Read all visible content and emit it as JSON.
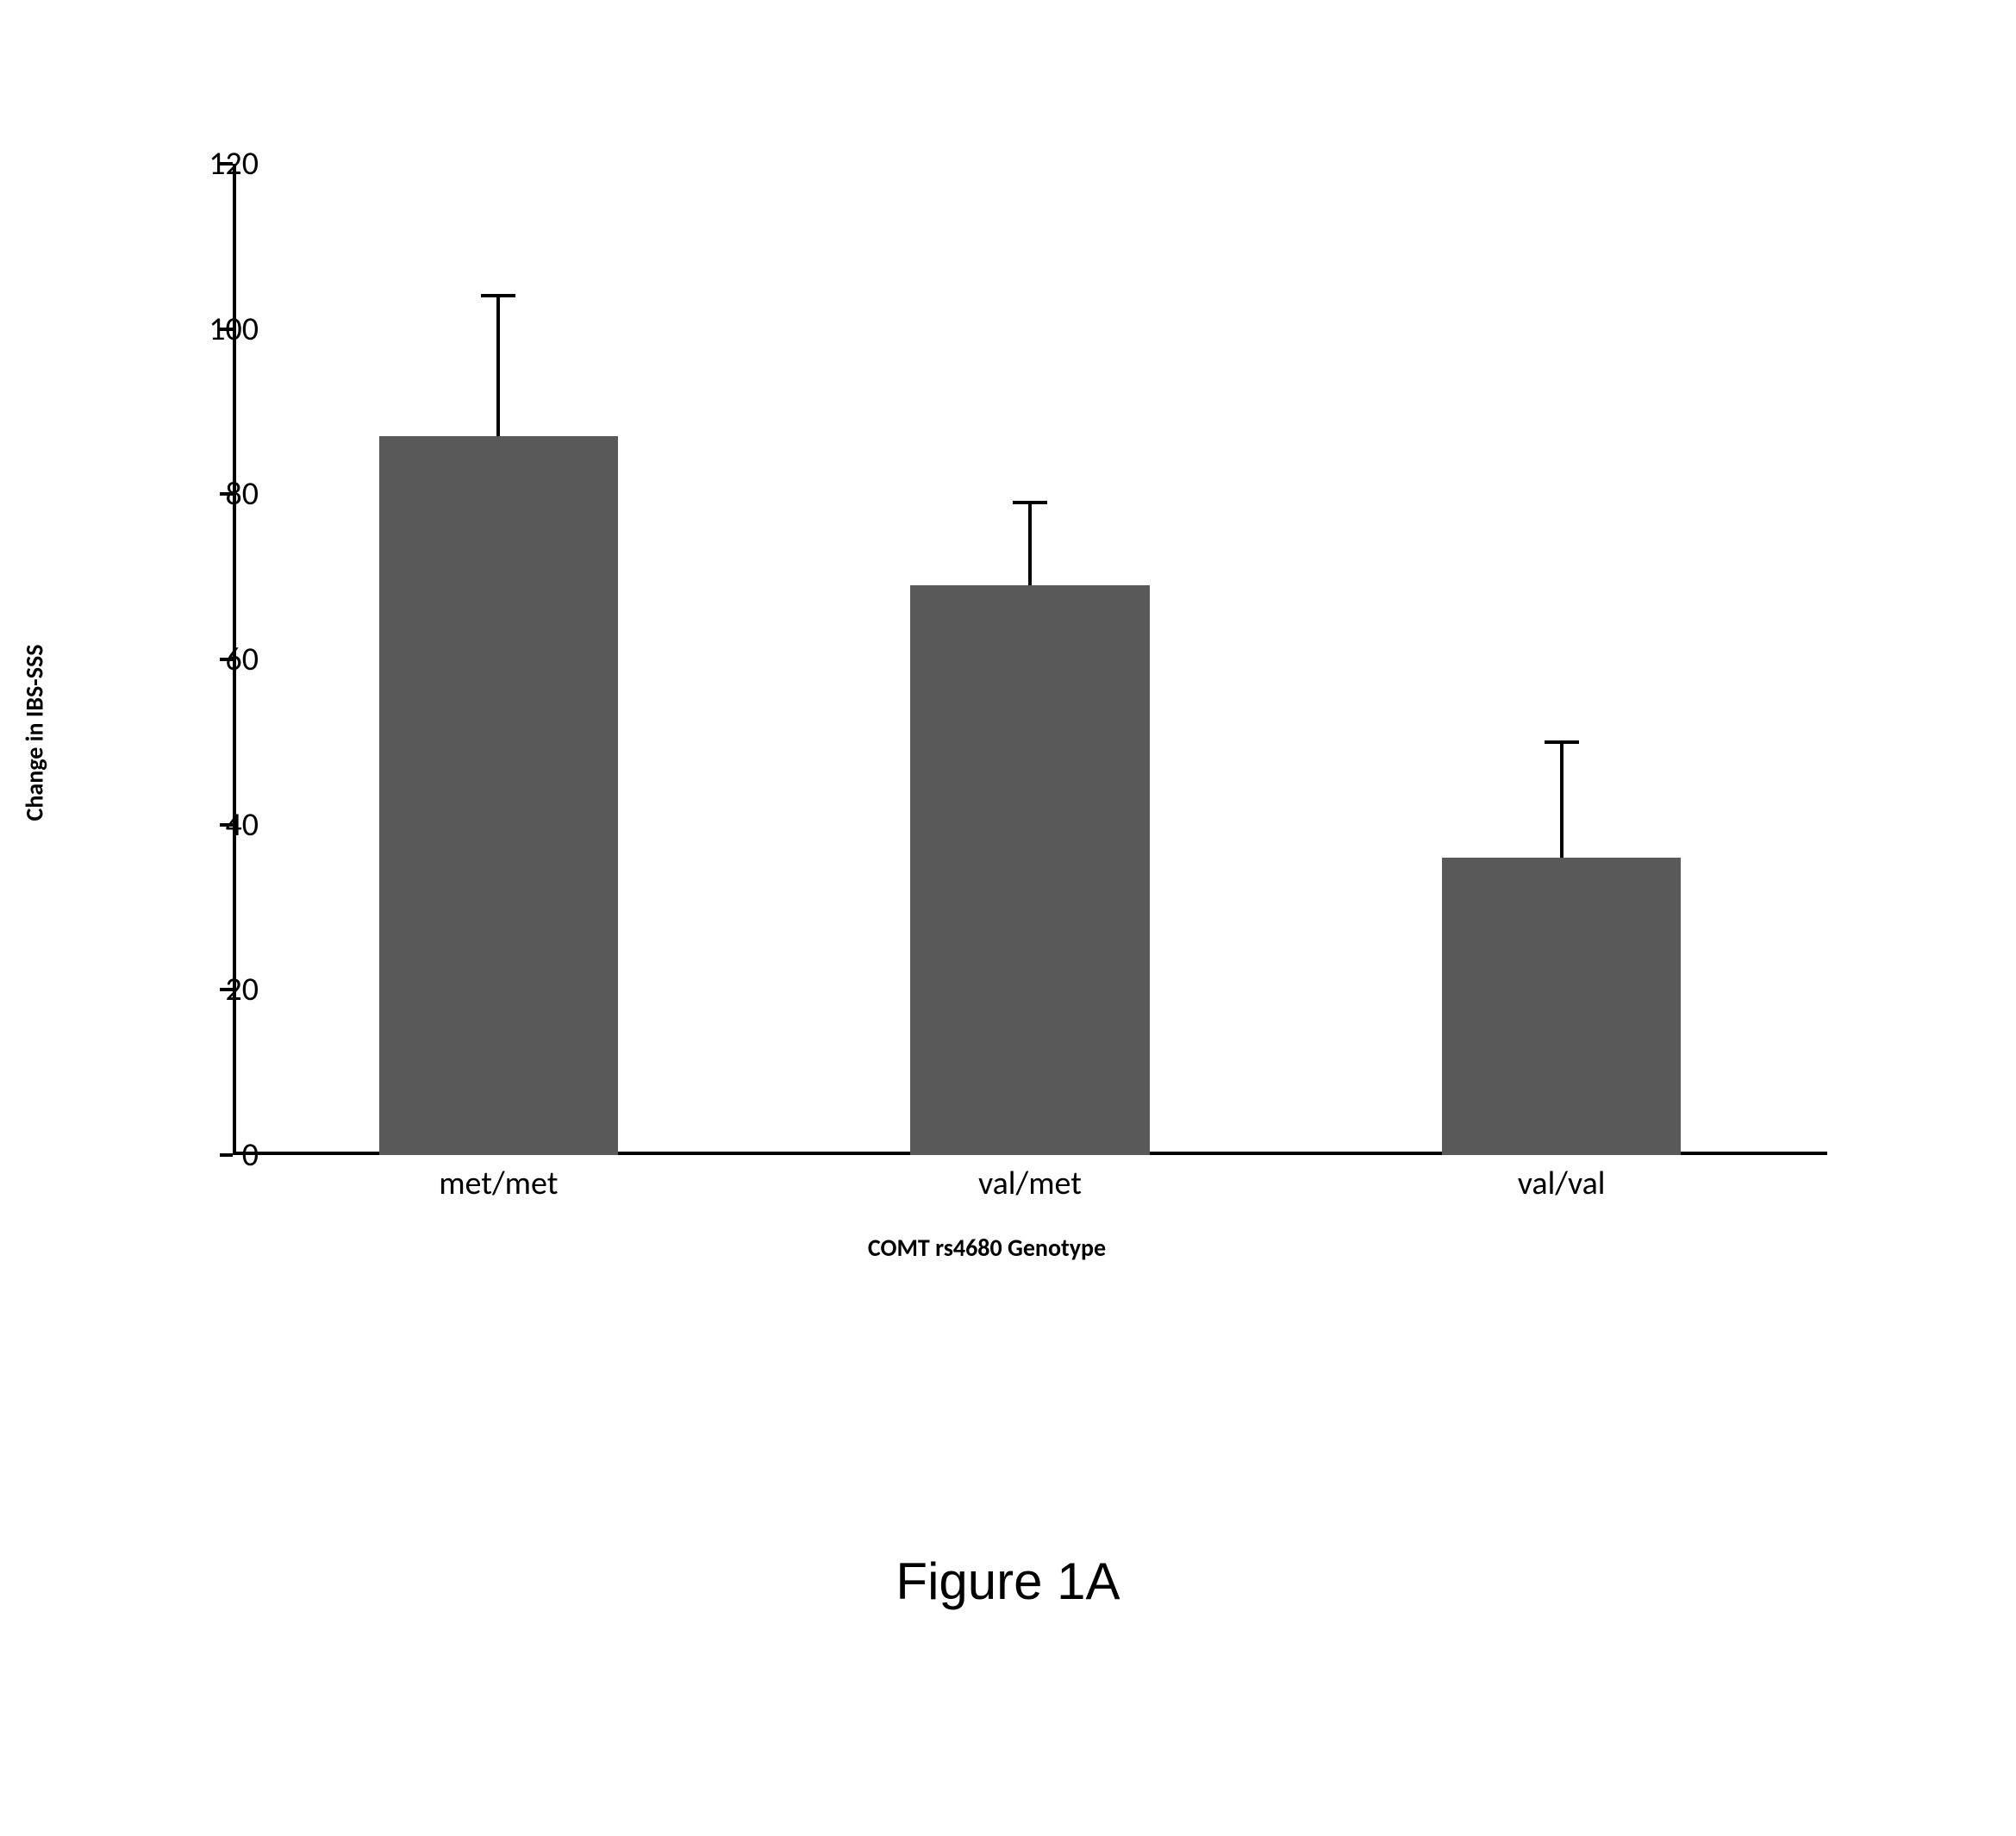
{
  "chart": {
    "type": "bar",
    "y_axis": {
      "label": "Change in IBS-SSS",
      "min": 0,
      "max": 120,
      "tick_step": 20,
      "ticks": [
        0,
        20,
        40,
        60,
        80,
        100,
        120
      ],
      "label_fontsize": 28,
      "tick_fontsize": 38
    },
    "x_axis": {
      "label": "COMT rs4680 Genotype",
      "categories": [
        "met/met",
        "val/met",
        "val/val"
      ],
      "label_fontsize": 28,
      "tick_fontsize": 38
    },
    "series": [
      {
        "category": "met/met",
        "value": 87,
        "error_upper": 17
      },
      {
        "category": "val/met",
        "value": 69,
        "error_upper": 10
      },
      {
        "category": "val/val",
        "value": 36,
        "error_upper": 14
      }
    ],
    "bar_color": "#595959",
    "bar_width_ratio": 0.45,
    "background_color": "#ffffff",
    "axis_color": "#000000",
    "error_bar_color": "#000000",
    "text_color": "#000000"
  },
  "caption": "Figure 1A"
}
